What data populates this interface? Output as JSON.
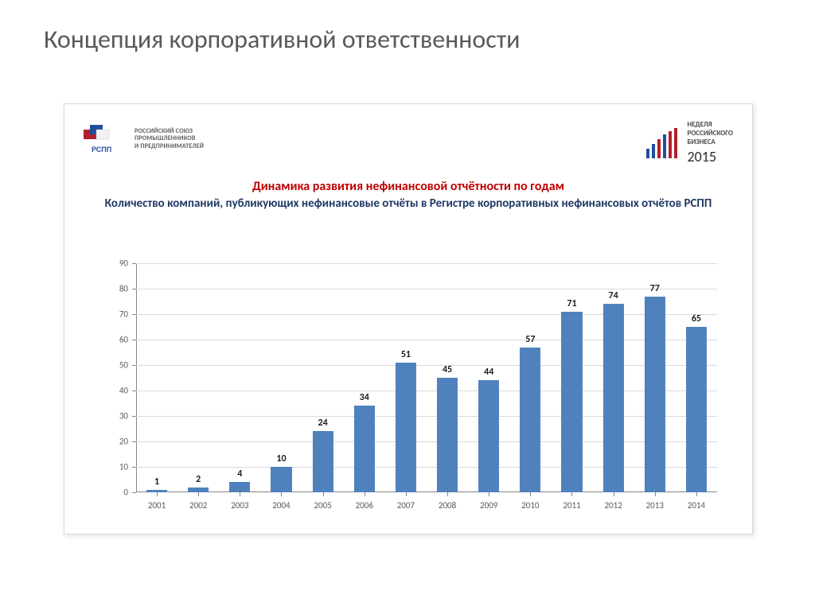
{
  "slide": {
    "title": "Концепция корпоративной ответственности"
  },
  "header": {
    "left_org": "РОССИЙСКИЙ СОЮЗ\nПРОМЫШЛЕННИКОВ\nИ ПРЕДПРИНИМАТЕЛЕЙ",
    "left_abbr": "РСПП",
    "right_line1": "НЕДЕЛЯ",
    "right_line2": "РОССИЙСКОГО",
    "right_line3": "БИЗНЕСА",
    "right_year": "2015"
  },
  "chart": {
    "type": "bar",
    "title": "Динамика развития нефинансовой отчётности по годам",
    "subtitle": "Количество компаний, публикующих нефинансовые отчёты в Регистре корпоративных нефинансовых отчётов РСПП",
    "title_color": "#c00000",
    "title_fontsize": 16,
    "subtitle_color": "#1f3864",
    "subtitle_fontsize": 15,
    "categories": [
      "2001",
      "2002",
      "2003",
      "2004",
      "2005",
      "2006",
      "2007",
      "2008",
      "2009",
      "2010",
      "2011",
      "2012",
      "2013",
      "2014"
    ],
    "values": [
      1,
      2,
      4,
      10,
      24,
      34,
      51,
      45,
      44,
      57,
      71,
      74,
      77,
      65
    ],
    "bar_color": "#4f81bd",
    "bar_width": 0.5,
    "ylim": [
      0,
      90
    ],
    "ytick_step": 10,
    "grid_color": "#d9d9d9",
    "axis_color": "#868686",
    "background_color": "#ffffff",
    "tick_label_fontsize": 11,
    "tick_label_color": "#595959",
    "value_label_fontsize": 12,
    "value_label_color": "#1a1a1a"
  }
}
